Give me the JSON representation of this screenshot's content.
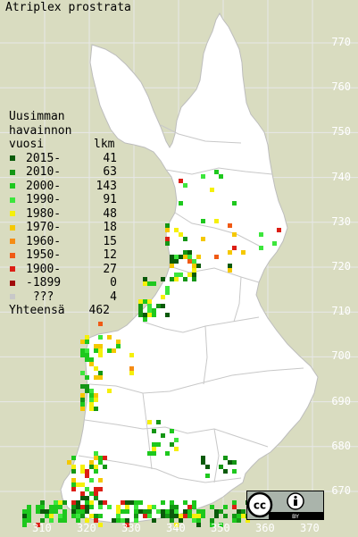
{
  "title": "Atriplex prostrata",
  "legend": {
    "header_line1": "Uusimman",
    "header_line2": "havainnon",
    "header_col1": "vuosi",
    "header_col2": "lkm",
    "rows": [
      {
        "label": "2015-",
        "count": "41",
        "color": "#0a5a0a"
      },
      {
        "label": "2010-",
        "count": "63",
        "color": "#149614"
      },
      {
        "label": "2000-",
        "count": "143",
        "color": "#1ec81e"
      },
      {
        "label": "1990-",
        "count": "91",
        "color": "#3ce63c"
      },
      {
        "label": "1980-",
        "count": "48",
        "color": "#f5f00a"
      },
      {
        "label": "1970-",
        "count": "18",
        "color": "#f5c800"
      },
      {
        "label": "1960-",
        "count": "15",
        "color": "#f58c14"
      },
      {
        "label": "1950-",
        "count": "12",
        "color": "#f05a14"
      },
      {
        "label": "1900-",
        "count": "27",
        "color": "#dc1e14"
      },
      {
        "label": "-1899",
        "count": "0",
        "color": "#a00a0a"
      },
      {
        "label": "???",
        "count": "4",
        "color": "#c8c8c8"
      }
    ],
    "total_label": "Yhteensä",
    "total_count": "462"
  },
  "y_ticks": [
    "770",
    "760",
    "750",
    "740",
    "730",
    "720",
    "710",
    "700",
    "690",
    "680",
    "670"
  ],
  "x_ticks": [
    "310",
    "320",
    "330",
    "340",
    "350",
    "360",
    "370"
  ],
  "license": {
    "cc": "cc",
    "by": "BY"
  },
  "map_colors": {
    "land": "#ffffff",
    "sea": "#d9dcc0",
    "border": "#c8c8c8",
    "grid": "#ffffff"
  }
}
